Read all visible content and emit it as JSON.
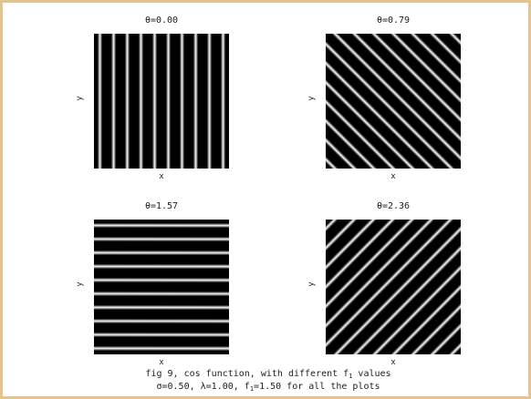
{
  "panels": [
    {
      "title": "θ=0.00",
      "theta": 0.0,
      "xlabel": "x",
      "ylabel": "y"
    },
    {
      "title": "θ=0.79",
      "theta": 0.79,
      "xlabel": "x",
      "ylabel": "y"
    },
    {
      "title": "θ=1.57",
      "theta": 1.57,
      "xlabel": "x",
      "ylabel": "y"
    },
    {
      "title": "θ=2.36",
      "theta": 2.36,
      "xlabel": "x",
      "ylabel": "y"
    }
  ],
  "caption": {
    "line1_prefix": "fig 9, cos function, with different f",
    "line1_sub": "1",
    "line1_suffix": " values",
    "line2_prefix": "σ=0.50, λ=1.00, f",
    "line2_sub": "1",
    "line2_suffix": "=1.50 for all the plots"
  },
  "colors": {
    "frame": "#e5c38f",
    "stripe_dark": "#000000",
    "stripe_light": "#ffffff"
  }
}
